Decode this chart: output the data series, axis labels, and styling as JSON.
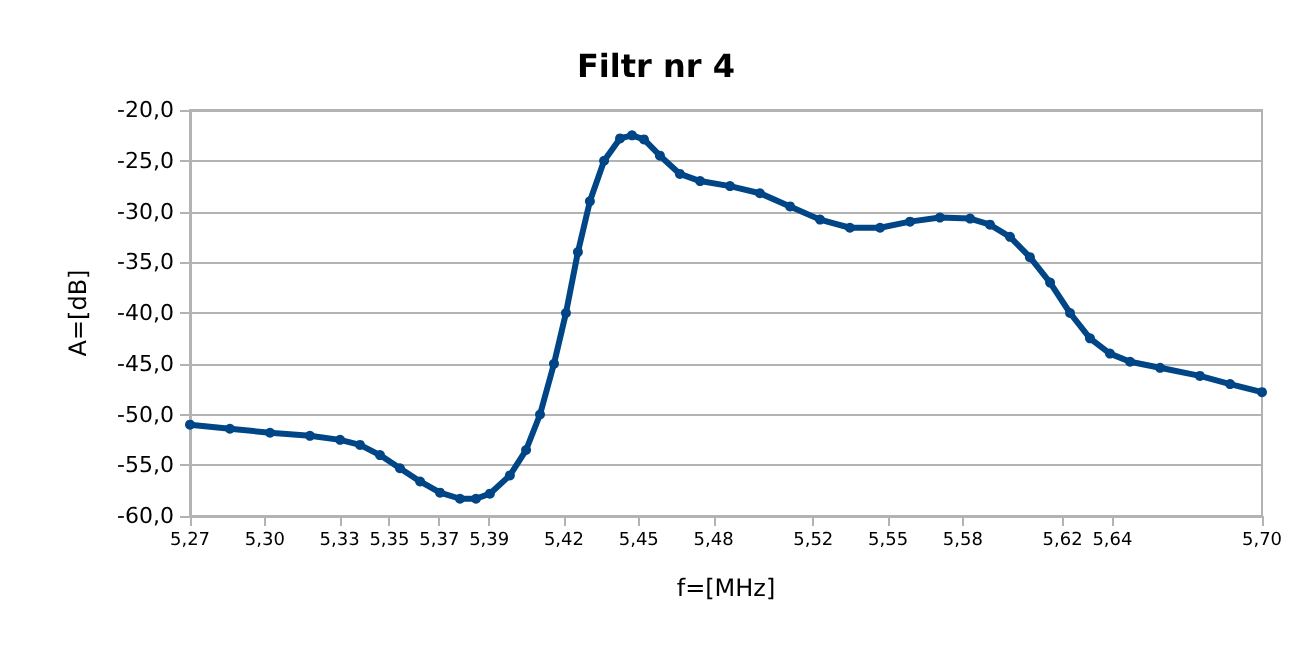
{
  "chart_data": {
    "type": "line",
    "title": "Filtr nr 4",
    "xlabel": "f=[MHz]",
    "ylabel": "A=[dB]",
    "x": [
      5.27,
      5.286,
      5.3021,
      5.3181,
      5.3302,
      5.3382,
      5.3462,
      5.3542,
      5.3623,
      5.3703,
      5.3783,
      5.3847,
      5.3903,
      5.3983,
      5.4048,
      5.4104,
      5.416,
      5.4208,
      5.4256,
      5.4304,
      5.4361,
      5.4425,
      5.4473,
      5.4521,
      5.4585,
      5.4665,
      5.4746,
      5.4866,
      5.4986,
      5.5107,
      5.5227,
      5.5347,
      5.5468,
      5.5588,
      5.5708,
      5.5829,
      5.5909,
      5.5989,
      5.6069,
      5.615,
      5.623,
      5.631,
      5.639,
      5.6471,
      5.6591,
      5.6751,
      5.6872,
      5.7
    ],
    "series": [
      {
        "color": "#004586",
        "values": [
          -51.0,
          -51.4,
          -51.8,
          -52.1,
          -52.5,
          -53.0,
          -54.0,
          -55.3,
          -56.6,
          -57.7,
          -58.3,
          -58.3,
          -57.8,
          -56.0,
          -53.5,
          -50.0,
          -45.0,
          -40.0,
          -34.0,
          -29.0,
          -25.0,
          -22.8,
          -22.5,
          -22.9,
          -24.5,
          -26.3,
          -27.0,
          -27.5,
          -28.2,
          -29.5,
          -30.8,
          -31.6,
          -31.6,
          -31.0,
          -30.6,
          -30.7,
          -31.3,
          -32.5,
          -34.5,
          -37.0,
          -40.0,
          -42.5,
          -44.0,
          -44.8,
          -45.4,
          -46.2,
          -47.0,
          -47.8
        ]
      }
    ],
    "xlim": [
      5.27,
      5.7
    ],
    "xticks": [
      {
        "value": 5.27,
        "label": "5,27"
      },
      {
        "value": 5.3,
        "label": "5,30"
      },
      {
        "value": 5.33,
        "label": "5,33"
      },
      {
        "value": 5.35,
        "label": "5,35"
      },
      {
        "value": 5.37,
        "label": "5,37"
      },
      {
        "value": 5.39,
        "label": "5,39"
      },
      {
        "value": 5.42,
        "label": "5,42"
      },
      {
        "value": 5.45,
        "label": "5,45"
      },
      {
        "value": 5.48,
        "label": "5,48"
      },
      {
        "value": 5.52,
        "label": "5,52"
      },
      {
        "value": 5.55,
        "label": "5,55"
      },
      {
        "value": 5.58,
        "label": "5,58"
      },
      {
        "value": 5.62,
        "label": "5,62"
      },
      {
        "value": 5.64,
        "label": "5,64"
      },
      {
        "value": 5.7,
        "label": "5,70"
      }
    ],
    "ylim": [
      -60,
      -20
    ],
    "yticks": [
      {
        "value": -60,
        "label": "-60,0"
      },
      {
        "value": -55,
        "label": "-55,0"
      },
      {
        "value": -50,
        "label": "-50,0"
      },
      {
        "value": -45,
        "label": "-45,0"
      },
      {
        "value": -40,
        "label": "-40,0"
      },
      {
        "value": -35,
        "label": "-35,0"
      },
      {
        "value": -30,
        "label": "-30,0"
      },
      {
        "value": -25,
        "label": "-25,0"
      },
      {
        "value": -20,
        "label": "-20,0"
      }
    ],
    "grid": "y",
    "marker": "circle",
    "line_style": "solid"
  }
}
